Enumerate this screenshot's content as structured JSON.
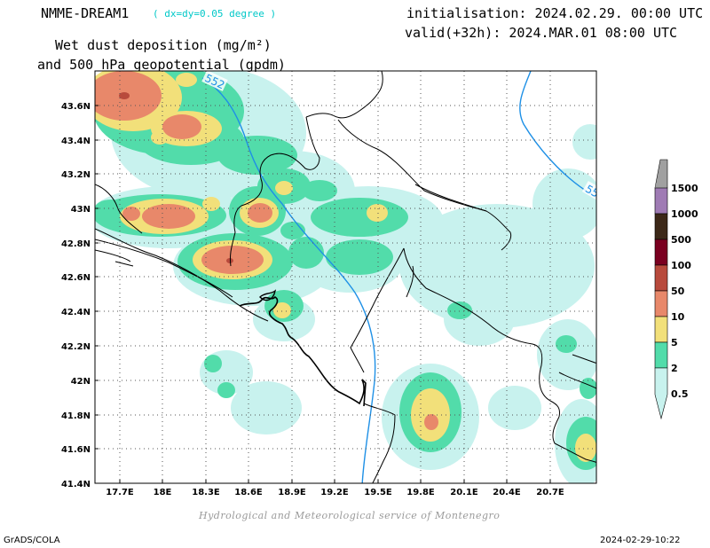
{
  "header": {
    "model": "NMME-DREAM1",
    "resolution": "( dx=dy=0.05 degree )",
    "initialisation": "initialisation: 2024.02.29. 00:00 UTC",
    "valid": "valid(+32h): 2024.MAR.01 08:00 UTC",
    "title_line1": "Wet dust deposition (mg/m²)",
    "title_line2": "and 500 hPa geopotential (gpdm)"
  },
  "map": {
    "lon_labels": [
      "17.7E",
      "18E",
      "18.3E",
      "18.6E",
      "18.9E",
      "19.2E",
      "19.5E",
      "19.8E",
      "20.1E",
      "20.4E",
      "20.7E"
    ],
    "lat_labels": [
      "43.6N",
      "43.4N",
      "43.2N",
      "43N",
      "42.8N",
      "42.6N",
      "42.4N",
      "42.2N",
      "42N",
      "41.8N",
      "41.6N",
      "41.4N"
    ],
    "contour_label_1": "552",
    "contour_label_2": "55"
  },
  "legend": {
    "levels": [
      "1500",
      "1000",
      "500",
      "100",
      "50",
      "10",
      "5",
      "2",
      "0.5"
    ],
    "colors": [
      "#9f7bb4",
      "#3c2818",
      "#7a0020",
      "#b84a3c",
      "#e8886a",
      "#f2e07a",
      "#52dcaa",
      "#c8f2ee"
    ],
    "top_arrow_color": "#a0a0a0"
  },
  "footer": {
    "credit": "Hydrological and Meteorological service of Montenegro",
    "left": "GrADS/COLA",
    "right": "2024-02-29-10:22"
  }
}
